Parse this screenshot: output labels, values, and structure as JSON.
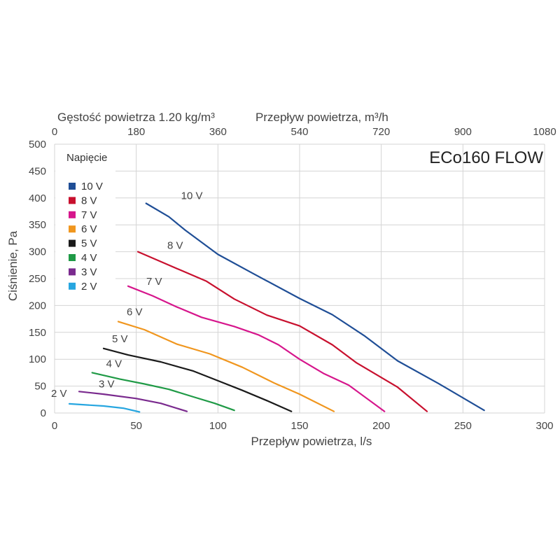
{
  "chart_data": {
    "type": "line",
    "model_title": "ECo160 FLOW",
    "density_label": "Gęstość powietrza 1.20 kg/m³",
    "top_axis_label": "Przepływ powietrza, m³/h",
    "xlabel": "Przepływ powietrza, l/s",
    "ylabel": "Ciśnienie, Pa",
    "xlim": [
      0,
      300
    ],
    "ylim": [
      0,
      500
    ],
    "top_xlim": [
      0,
      1080
    ],
    "x_ticks": [
      "0",
      "50",
      "100",
      "150",
      "200",
      "250",
      "300"
    ],
    "y_ticks": [
      "0",
      "50",
      "100",
      "150",
      "200",
      "250",
      "300",
      "350",
      "400",
      "450",
      "500"
    ],
    "top_ticks": [
      "0",
      "180",
      "360",
      "540",
      "720",
      "900",
      "1080"
    ],
    "grid": true,
    "legend": {
      "title": "Napięcie",
      "placement": "top-left"
    },
    "series": [
      {
        "name": "10 V",
        "label": "10 V",
        "color": "#1f4e96",
        "points": [
          [
            56,
            390
          ],
          [
            70,
            365
          ],
          [
            80,
            340
          ],
          [
            100,
            295
          ],
          [
            120,
            262
          ],
          [
            150,
            213
          ],
          [
            170,
            183
          ],
          [
            190,
            143
          ],
          [
            210,
            97
          ],
          [
            235,
            55
          ],
          [
            263,
            5
          ]
        ]
      },
      {
        "name": "8 V",
        "label": "8 V",
        "color": "#c8102e",
        "points": [
          [
            51,
            300
          ],
          [
            70,
            275
          ],
          [
            80,
            262
          ],
          [
            93,
            245
          ],
          [
            110,
            212
          ],
          [
            130,
            182
          ],
          [
            150,
            162
          ],
          [
            170,
            127
          ],
          [
            185,
            93
          ],
          [
            210,
            48
          ],
          [
            228,
            3
          ]
        ]
      },
      {
        "name": "7 V",
        "label": "7 V",
        "color": "#d6168c",
        "points": [
          [
            45,
            236
          ],
          [
            60,
            218
          ],
          [
            75,
            197
          ],
          [
            90,
            178
          ],
          [
            110,
            161
          ],
          [
            125,
            145
          ],
          [
            137,
            127
          ],
          [
            150,
            100
          ],
          [
            165,
            73
          ],
          [
            180,
            52
          ],
          [
            202,
            3
          ]
        ]
      },
      {
        "name": "6 V",
        "label": "6 V",
        "color": "#f0961e",
        "points": [
          [
            39,
            170
          ],
          [
            55,
            155
          ],
          [
            75,
            128
          ],
          [
            95,
            110
          ],
          [
            115,
            85
          ],
          [
            135,
            55
          ],
          [
            150,
            35
          ],
          [
            171,
            3
          ]
        ]
      },
      {
        "name": "5 V",
        "label": "5 V",
        "color": "#1a1a1a",
        "points": [
          [
            30,
            120
          ],
          [
            45,
            108
          ],
          [
            65,
            95
          ],
          [
            85,
            78
          ],
          [
            100,
            60
          ],
          [
            115,
            42
          ],
          [
            130,
            23
          ],
          [
            145,
            3
          ]
        ]
      },
      {
        "name": "4 V",
        "label": "4 V",
        "color": "#1f9a46",
        "points": [
          [
            23,
            75
          ],
          [
            40,
            63
          ],
          [
            55,
            54
          ],
          [
            70,
            44
          ],
          [
            85,
            30
          ],
          [
            98,
            18
          ],
          [
            110,
            5
          ]
        ]
      },
      {
        "name": "3 V",
        "label": "3 V",
        "color": "#7a2a8e",
        "points": [
          [
            15,
            40
          ],
          [
            30,
            35
          ],
          [
            50,
            27
          ],
          [
            65,
            18
          ],
          [
            81,
            3
          ]
        ]
      },
      {
        "name": "2 V",
        "label": "2 V",
        "color": "#27a6e0",
        "points": [
          [
            9,
            17
          ],
          [
            30,
            13
          ],
          [
            42,
            9
          ],
          [
            52,
            2
          ]
        ]
      }
    ]
  }
}
